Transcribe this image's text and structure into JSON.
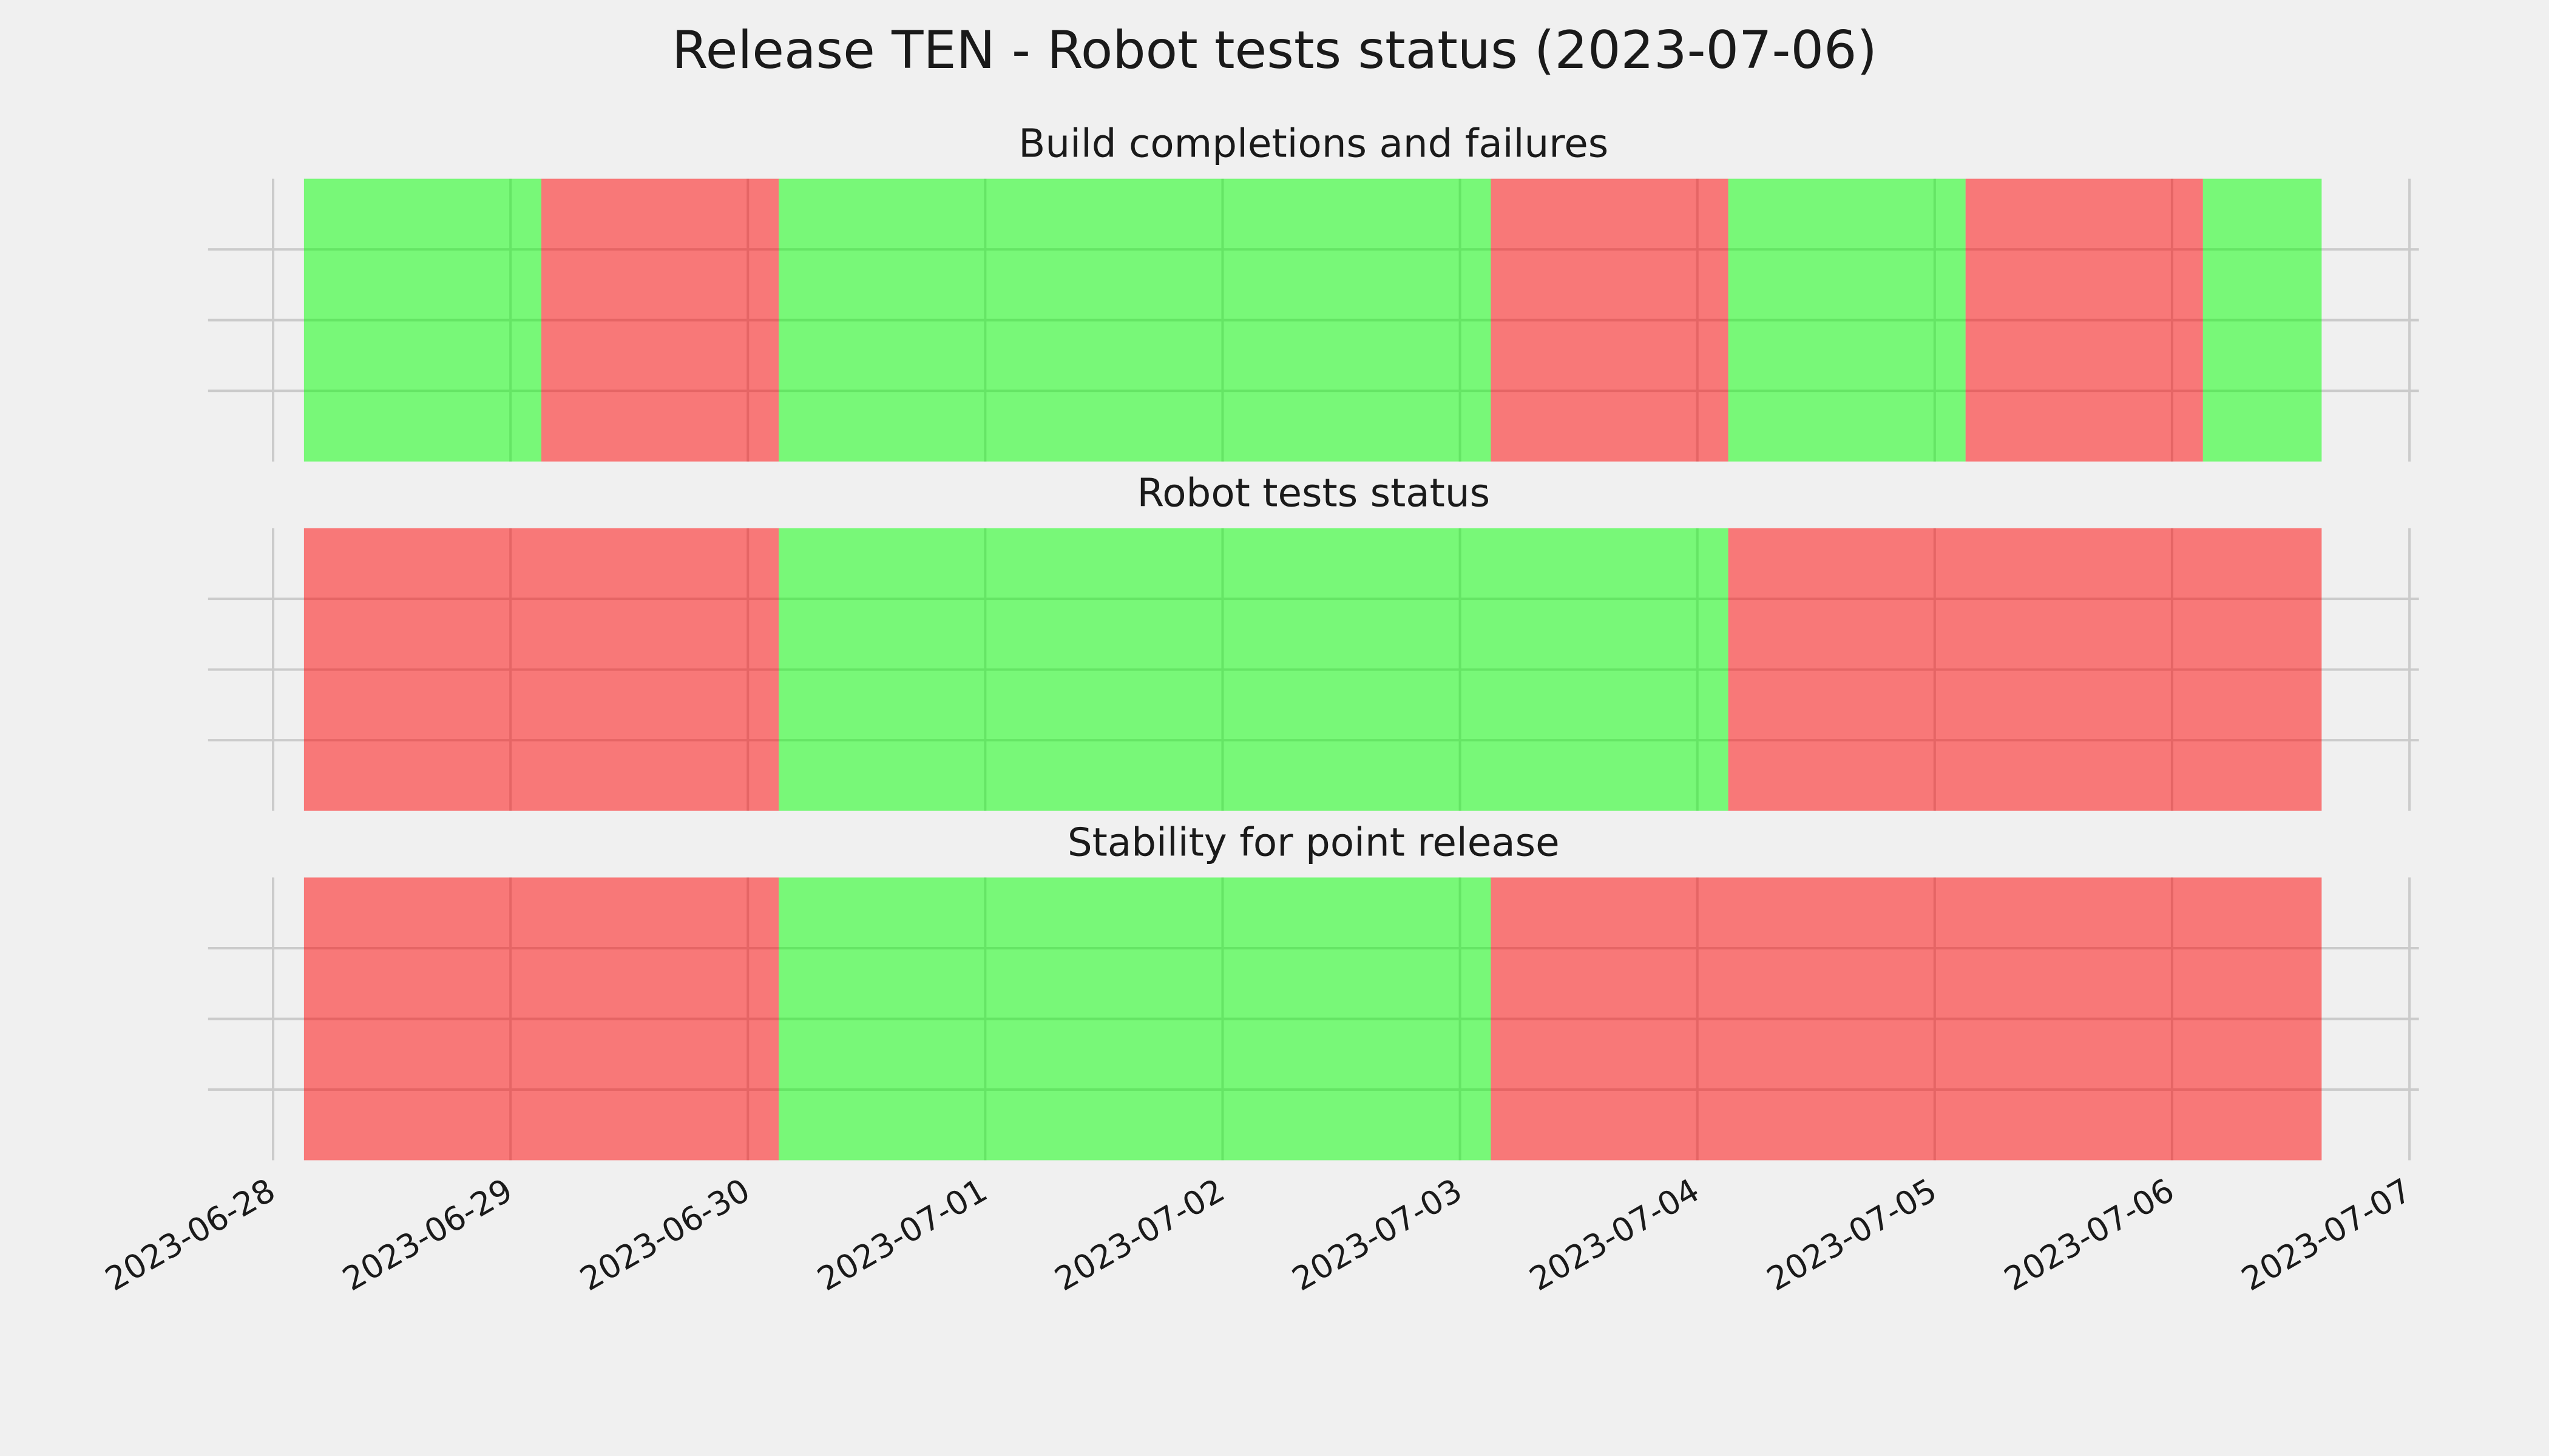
{
  "title": "Release TEN - Robot tests status (2023-07-06)",
  "chart_data": [
    {
      "type": "span",
      "title": "Build completions and failures",
      "alpha": 0.5,
      "grid": true,
      "xlim": [
        19535.726,
        19545.04
      ],
      "xticks": [
        19536,
        19537,
        19538,
        19539,
        19540,
        19541,
        19542,
        19543,
        19544,
        19545
      ],
      "ylim": [
        0,
        1
      ],
      "yticks": [
        0.25,
        0.5,
        0.75
      ],
      "spans": [
        {
          "start": 19536.13,
          "end": 19537.13,
          "color": "#00ff00"
        },
        {
          "start": 19537.13,
          "end": 19538.13,
          "color": "#ff0000"
        },
        {
          "start": 19538.13,
          "end": 19541.13,
          "color": "#00ff00"
        },
        {
          "start": 19541.13,
          "end": 19542.13,
          "color": "#ff0000"
        },
        {
          "start": 19542.13,
          "end": 19543.13,
          "color": "#00ff00"
        },
        {
          "start": 19543.13,
          "end": 19544.13,
          "color": "#ff0000"
        },
        {
          "start": 19544.13,
          "end": 19544.63,
          "color": "#00ff00"
        }
      ]
    },
    {
      "type": "span",
      "title": "Robot tests status",
      "alpha": 0.5,
      "grid": true,
      "xlim": [
        19535.726,
        19545.04
      ],
      "xticks": [
        19536,
        19537,
        19538,
        19539,
        19540,
        19541,
        19542,
        19543,
        19544,
        19545
      ],
      "ylim": [
        0,
        1
      ],
      "yticks": [
        0.25,
        0.5,
        0.75
      ],
      "spans": [
        {
          "start": 19536.13,
          "end": 19538.13,
          "color": "#ff0000"
        },
        {
          "start": 19538.13,
          "end": 19542.13,
          "color": "#00ff00"
        },
        {
          "start": 19542.13,
          "end": 19544.63,
          "color": "#ff0000"
        }
      ]
    },
    {
      "type": "span",
      "title": "Stability for point release",
      "alpha": 0.5,
      "grid": true,
      "xlim": [
        19535.726,
        19545.04
      ],
      "xticks": [
        {
          "value": 19536,
          "label": "2023-06-28"
        },
        {
          "value": 19537,
          "label": "2023-06-29"
        },
        {
          "value": 19538,
          "label": "2023-06-30"
        },
        {
          "value": 19539,
          "label": "2023-07-01"
        },
        {
          "value": 19540,
          "label": "2023-07-02"
        },
        {
          "value": 19541,
          "label": "2023-07-03"
        },
        {
          "value": 19542,
          "label": "2023-07-04"
        },
        {
          "value": 19543,
          "label": "2023-07-05"
        },
        {
          "value": 19544,
          "label": "2023-07-06"
        },
        {
          "value": 19545,
          "label": "2023-07-07"
        }
      ],
      "ylim": [
        0,
        1
      ],
      "yticks": [
        0.25,
        0.5,
        0.75
      ],
      "spans": [
        {
          "start": 19536.13,
          "end": 19538.13,
          "color": "#ff0000"
        },
        {
          "start": 19538.13,
          "end": 19541.13,
          "color": "#00ff00"
        },
        {
          "start": 19541.13,
          "end": 19544.63,
          "color": "#ff0000"
        }
      ]
    }
  ]
}
